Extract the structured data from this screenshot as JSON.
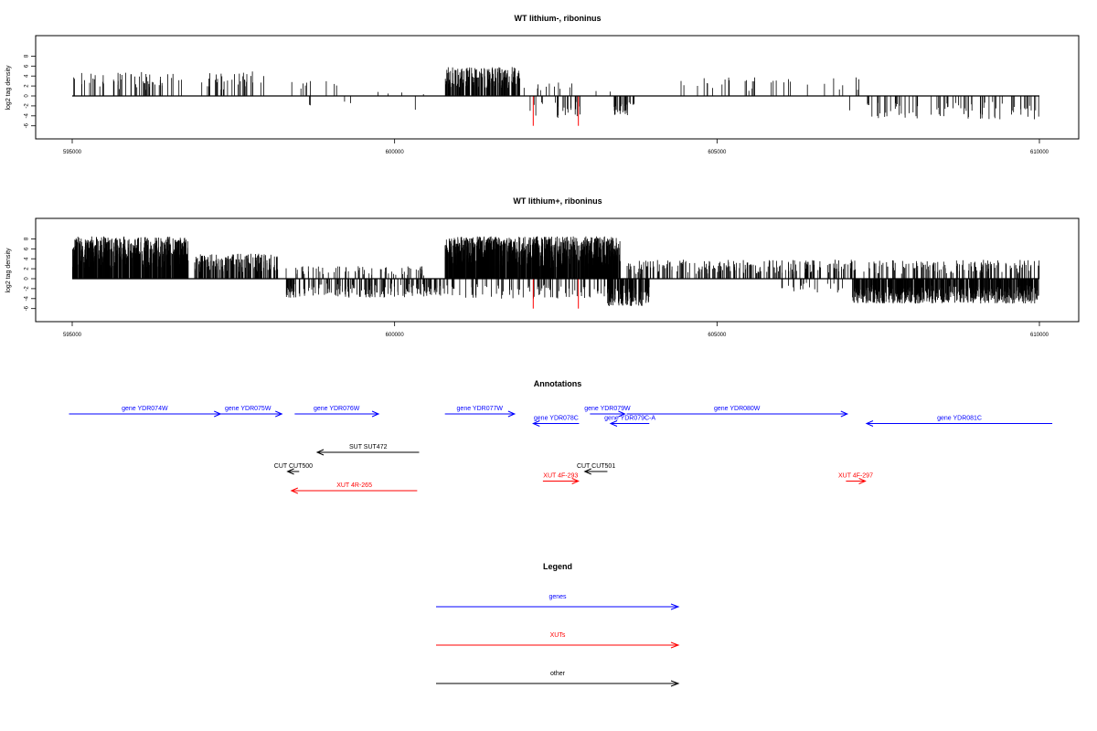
{
  "chart_data": [
    {
      "type": "bar",
      "title": "WT lithium-, riboninus",
      "ylabel": "log2 tag density",
      "xlim": [
        595000,
        610000
      ],
      "ylim": [
        -6,
        9
      ],
      "x_ticks": [
        "595000",
        "600000",
        "605000",
        "610000"
      ],
      "y_ticks": [
        "-6",
        "-4",
        "-2",
        "0",
        "2",
        "4",
        "6",
        "8"
      ],
      "bar_color": "#000000",
      "highlight_color": "#ff0000",
      "positive_regions": [
        {
          "start": 595000,
          "end": 596700,
          "max": 4.8,
          "density": 0.45
        },
        {
          "start": 597000,
          "end": 598000,
          "max": 4.9,
          "density": 0.45
        },
        {
          "start": 598300,
          "end": 599400,
          "max": 3.0,
          "density": 0.12
        },
        {
          "start": 599600,
          "end": 600700,
          "max": 1.2,
          "density": 0.05
        },
        {
          "start": 600780,
          "end": 601950,
          "max": 5.8,
          "density": 2.2
        },
        {
          "start": 602000,
          "end": 602800,
          "max": 3.0,
          "density": 0.2
        },
        {
          "start": 602850,
          "end": 603400,
          "max": 1.0,
          "density": 0.05
        },
        {
          "start": 604200,
          "end": 605600,
          "max": 3.8,
          "density": 0.18
        },
        {
          "start": 605700,
          "end": 607300,
          "max": 3.9,
          "density": 0.12
        }
      ],
      "negative_regions": [
        {
          "start": 598300,
          "end": 599400,
          "max": 3.0,
          "density": 0.05
        },
        {
          "start": 599700,
          "end": 600400,
          "max": 3.3,
          "density": 0.03
        },
        {
          "start": 602100,
          "end": 602900,
          "max": 4.5,
          "density": 0.4
        },
        {
          "start": 603400,
          "end": 603750,
          "max": 4.0,
          "density": 1.2
        },
        {
          "start": 607000,
          "end": 607100,
          "max": 3.5,
          "density": 0.05
        },
        {
          "start": 607300,
          "end": 610000,
          "max": 4.8,
          "density": 0.4
        }
      ],
      "highlight_bars": [
        {
          "x": 602150,
          "y": -6.0
        },
        {
          "x": 602850,
          "y": -6.0
        }
      ]
    },
    {
      "type": "bar",
      "title": "WT lithium+, riboninus",
      "ylabel": "log2 tag density",
      "xlim": [
        595000,
        610000
      ],
      "ylim": [
        -6,
        9
      ],
      "x_ticks": [
        "595000",
        "600000",
        "605000",
        "610000"
      ],
      "y_ticks": [
        "-6",
        "-4",
        "-2",
        "0",
        "2",
        "4",
        "6",
        "8"
      ],
      "bar_color": "#000000",
      "highlight_color": "#ff0000",
      "positive_regions": [
        {
          "start": 595000,
          "end": 596800,
          "max": 8.5,
          "density": 4.0
        },
        {
          "start": 596900,
          "end": 598200,
          "max": 5.0,
          "density": 1.8
        },
        {
          "start": 598300,
          "end": 600500,
          "max": 2.5,
          "density": 0.4
        },
        {
          "start": 600780,
          "end": 603500,
          "max": 8.5,
          "density": 4.5
        },
        {
          "start": 603600,
          "end": 610000,
          "max": 3.8,
          "density": 0.8
        }
      ],
      "negative_regions": [
        {
          "start": 598300,
          "end": 600800,
          "max": 3.8,
          "density": 1.0
        },
        {
          "start": 600800,
          "end": 603300,
          "max": 4.0,
          "density": 0.5
        },
        {
          "start": 603300,
          "end": 603950,
          "max": 5.5,
          "density": 3.0
        },
        {
          "start": 606000,
          "end": 607000,
          "max": 3.0,
          "density": 0.3
        },
        {
          "start": 607100,
          "end": 610000,
          "max": 5.0,
          "density": 3.0
        }
      ],
      "highlight_bars": [
        {
          "x": 602150,
          "y": -6.0
        },
        {
          "x": 602850,
          "y": -6.0
        }
      ]
    }
  ],
  "annotations": {
    "title": "Annotations",
    "features": [
      {
        "label": "gene YDR074W",
        "kind": "gene",
        "start": 594950,
        "end": 597300,
        "strand": "+",
        "row": 0
      },
      {
        "label": "gene YDR075W",
        "kind": "gene",
        "start": 597200,
        "end": 598250,
        "strand": "+",
        "row": 0
      },
      {
        "label": "gene YDR076W",
        "kind": "gene",
        "start": 598450,
        "end": 599750,
        "strand": "+",
        "row": 0
      },
      {
        "label": "gene YDR077W",
        "kind": "gene",
        "start": 600780,
        "end": 601860,
        "strand": "+",
        "row": 0
      },
      {
        "label": "gene YDR079W",
        "kind": "gene",
        "start": 603030,
        "end": 603570,
        "strand": "+",
        "row": 0
      },
      {
        "label": "gene YDR080W",
        "kind": "gene",
        "start": 603600,
        "end": 607020,
        "strand": "+",
        "row": 0
      },
      {
        "label": "gene YDR078C",
        "kind": "gene",
        "start": 602150,
        "end": 602860,
        "strand": "-",
        "row": 1
      },
      {
        "label": "gene YDR079C-A",
        "kind": "gene",
        "start": 603350,
        "end": 603950,
        "strand": "-",
        "row": 1
      },
      {
        "label": "gene YDR081C",
        "kind": "gene",
        "start": 607320,
        "end": 610200,
        "strand": "-",
        "row": 1
      },
      {
        "label": "SUT SUT472",
        "kind": "other",
        "start": 598800,
        "end": 600380,
        "strand": "-",
        "row": 4
      },
      {
        "label": "CUT CUT500",
        "kind": "other",
        "start": 598340,
        "end": 598520,
        "strand": "-",
        "row": 6
      },
      {
        "label": "CUT CUT501",
        "kind": "other",
        "start": 602950,
        "end": 603300,
        "strand": "-",
        "row": 6
      },
      {
        "label": "XUT 4F-293",
        "kind": "xut",
        "start": 602300,
        "end": 602850,
        "strand": "+",
        "row": 7
      },
      {
        "label": "XUT 4F-297",
        "kind": "xut",
        "start": 607000,
        "end": 607300,
        "strand": "+",
        "row": 7
      },
      {
        "label": "XUT 4R-265",
        "kind": "xut",
        "start": 598400,
        "end": 600350,
        "strand": "-",
        "row": 8
      }
    ]
  },
  "legend": {
    "title": "Legend",
    "items": [
      {
        "label": "genes",
        "color": "#0000ff"
      },
      {
        "label": "XUTs",
        "color": "#ff0000"
      },
      {
        "label": "other",
        "color": "#000000"
      }
    ]
  },
  "colors": {
    "gene": "#0000ff",
    "xut": "#ff0000",
    "other": "#000000",
    "axis": "#000000"
  }
}
